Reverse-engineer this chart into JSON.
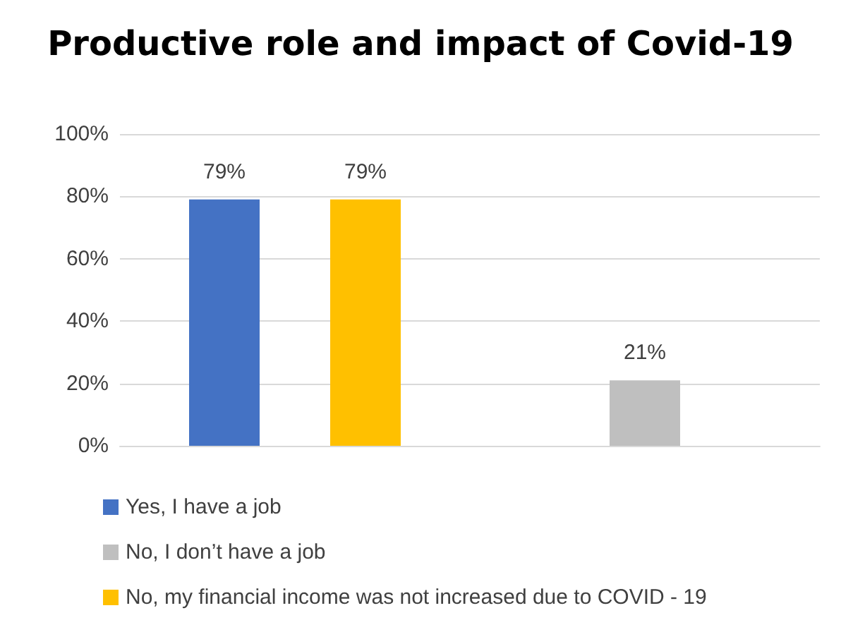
{
  "chart_data": {
    "type": "bar",
    "title": "Productive role and impact of Covid-19",
    "categories": [
      null,
      null
    ],
    "series": [
      {
        "name": "Yes, I have a job",
        "color": "#4472c4",
        "values": [
          79,
          null
        ]
      },
      {
        "name": "No, I don’t have a job",
        "color": "#bfbfbf",
        "values": [
          null,
          21
        ]
      },
      {
        "name": "No, my financial income was not increased due to COVID - 19",
        "color": "#ffc000",
        "values": [
          79,
          null
        ]
      }
    ],
    "ylim": [
      0,
      100
    ],
    "yticks": [
      {
        "value": 0,
        "label": "0%"
      },
      {
        "value": 20,
        "label": "20%"
      },
      {
        "value": 40,
        "label": "40%"
      },
      {
        "value": 60,
        "label": "60%"
      },
      {
        "value": 80,
        "label": "80%"
      },
      {
        "value": 100,
        "label": "100%"
      }
    ],
    "value_labels": [
      [
        "79%",
        null
      ],
      [
        null,
        "21%"
      ],
      [
        "79%",
        null
      ]
    ],
    "grid": true,
    "legend": "bottom"
  }
}
